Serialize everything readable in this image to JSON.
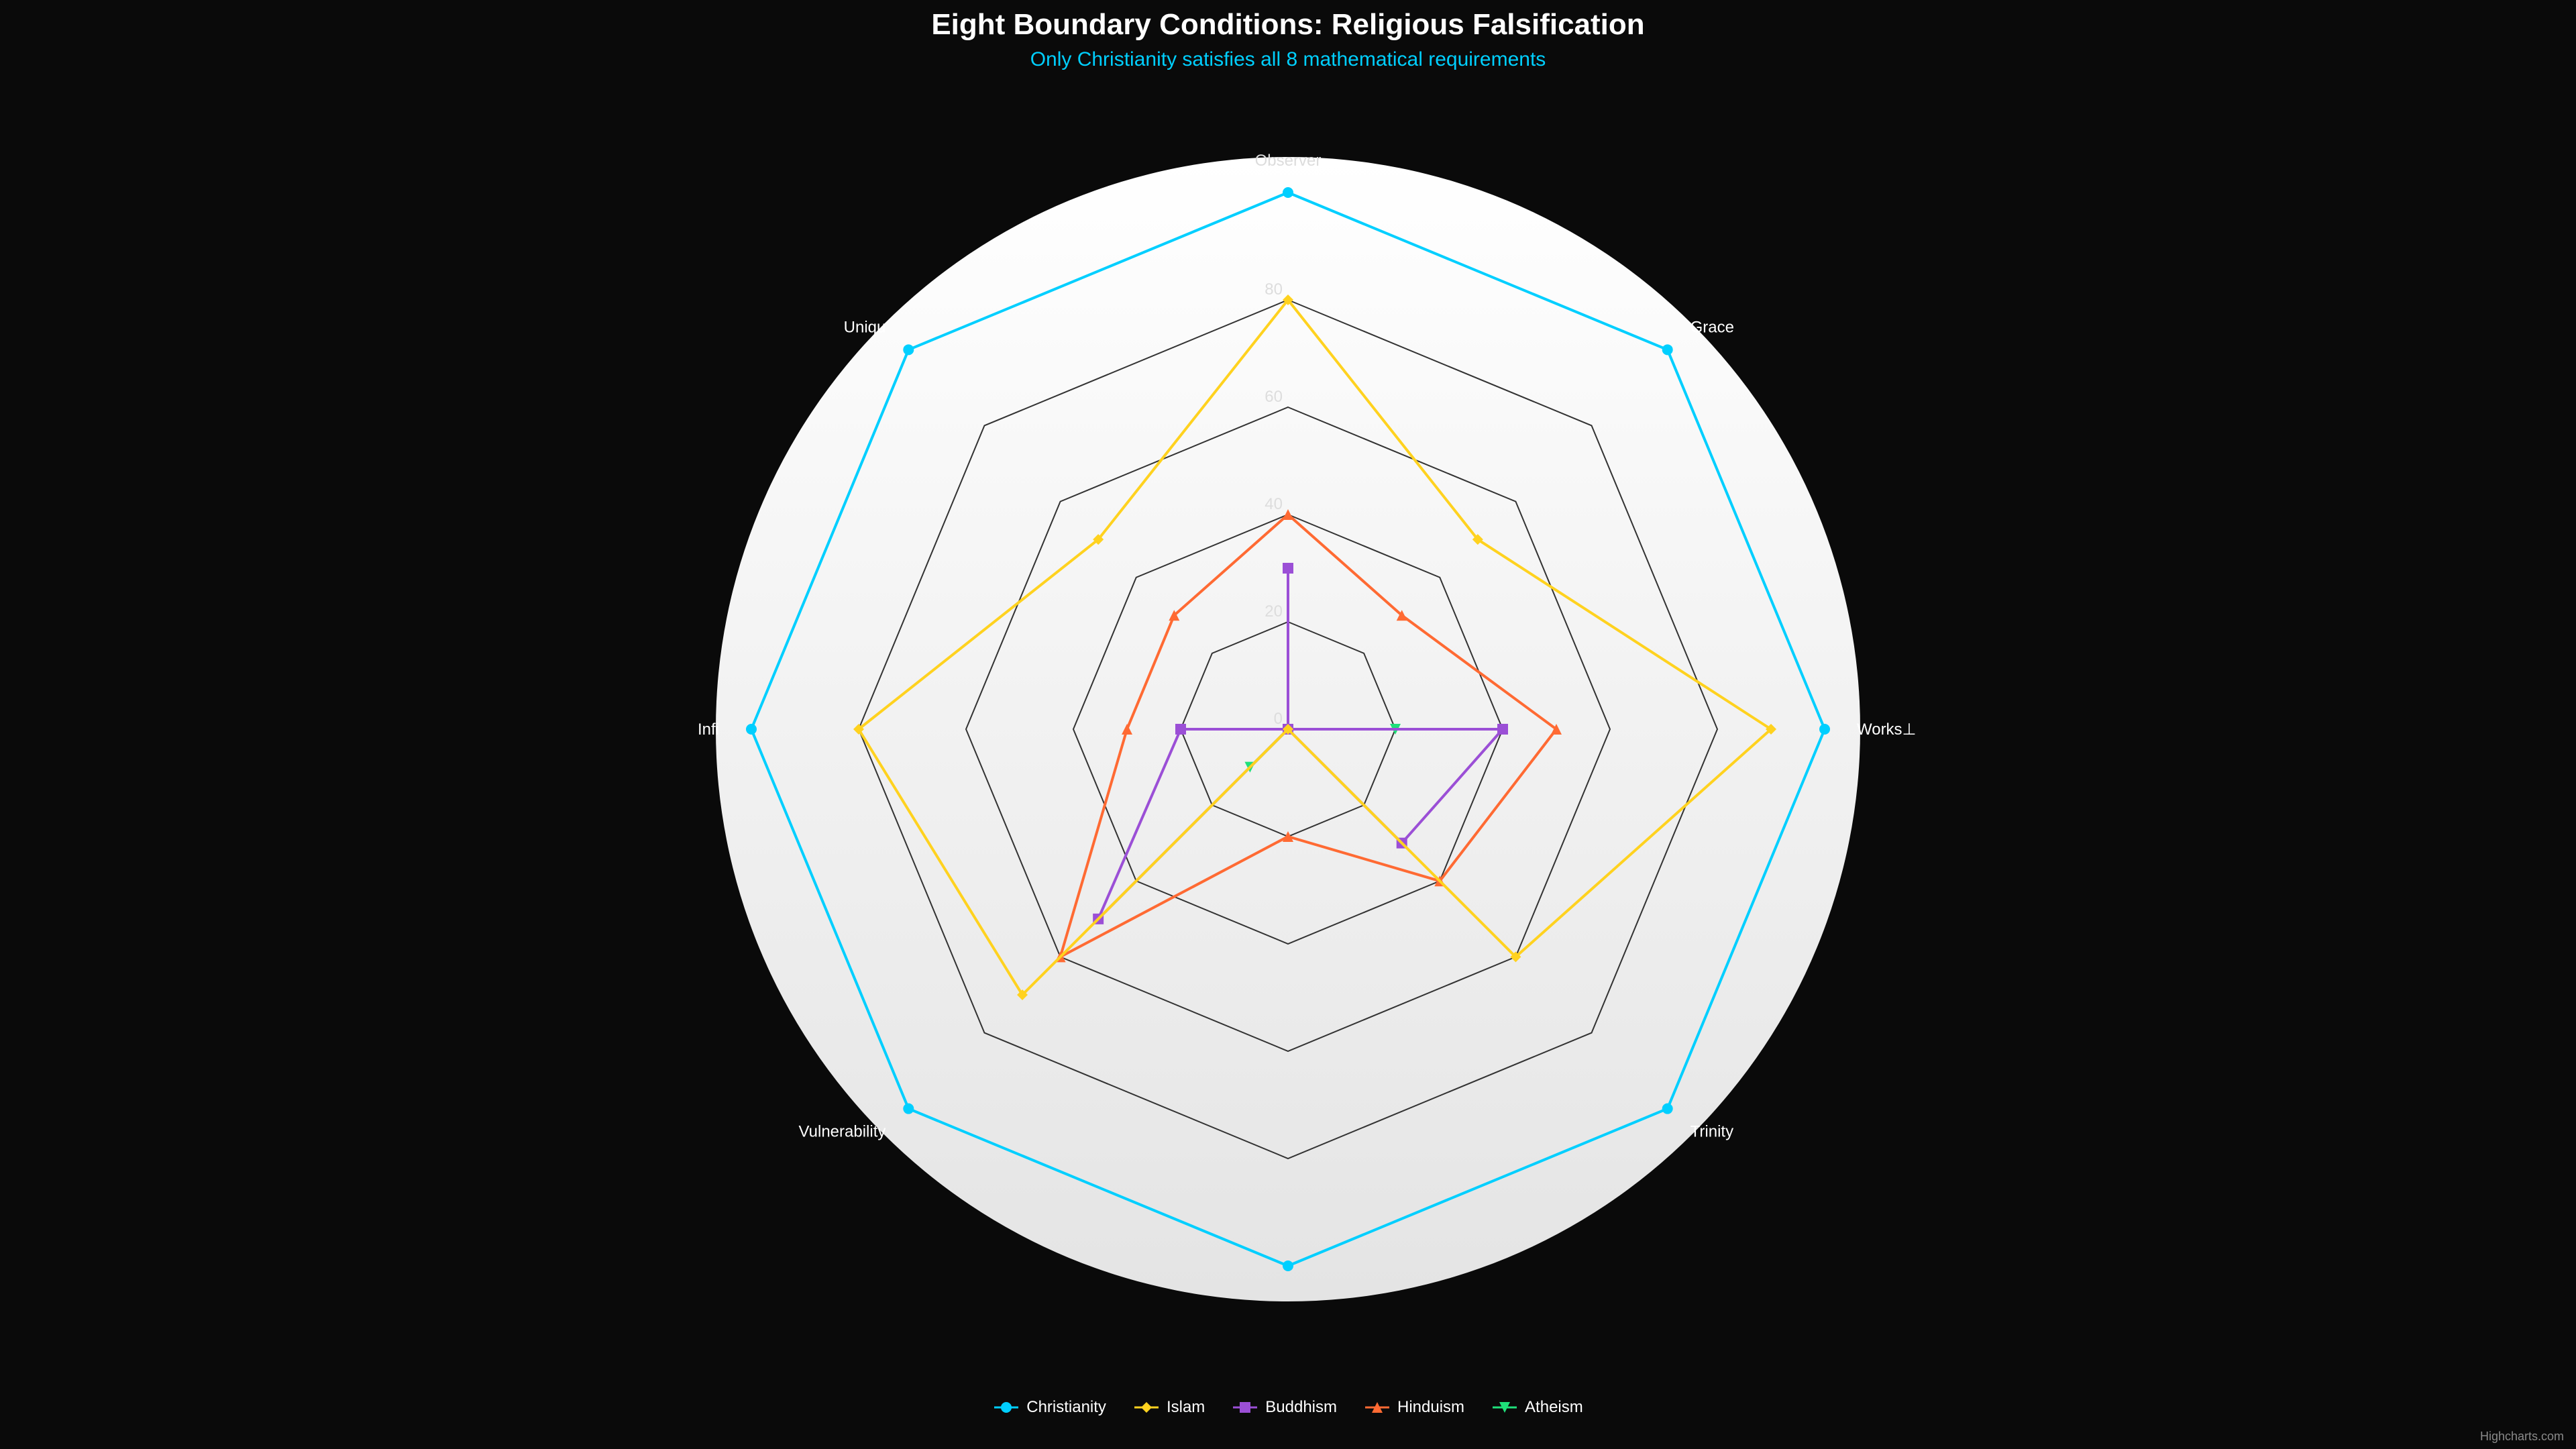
{
  "chart_data": {
    "type": "radar",
    "title": "Eight Boundary Conditions: Religious Falsification",
    "subtitle": "Only Christianity satisfies all 8 mathematical requirements",
    "categories": [
      "Observer",
      "Grace",
      "Works⊥",
      "Trinity",
      "",
      "Vulnerability",
      "Infi",
      "Uniqu"
    ],
    "ylim": [
      0,
      100
    ],
    "yticks": [
      0,
      20,
      40,
      60,
      80
    ],
    "grid": true,
    "gridshape": "polygon",
    "legend_position": "bottom-center",
    "series": [
      {
        "name": "Christianity",
        "color": "#00cfff",
        "marker": "circle",
        "values": [
          100,
          100,
          100,
          100,
          100,
          100,
          100,
          100
        ]
      },
      {
        "name": "Islam",
        "color": "#ffd21f",
        "marker": "diamond",
        "values": [
          80,
          50,
          90,
          60,
          0,
          70,
          80,
          50
        ]
      },
      {
        "name": "Buddhism",
        "color": "#9b4fd6",
        "marker": "square",
        "values": [
          30,
          0,
          40,
          30,
          0,
          50,
          20,
          0
        ]
      },
      {
        "name": "Hinduism",
        "color": "#ff6a33",
        "marker": "triangle",
        "values": [
          40,
          30,
          50,
          40,
          20,
          60,
          30,
          30
        ]
      },
      {
        "name": "Atheism",
        "color": "#1fe07a",
        "marker": "triangle-down",
        "values": [
          0,
          0,
          20,
          0,
          0,
          10,
          0,
          0
        ]
      }
    ]
  },
  "credits": "Highcharts.com"
}
